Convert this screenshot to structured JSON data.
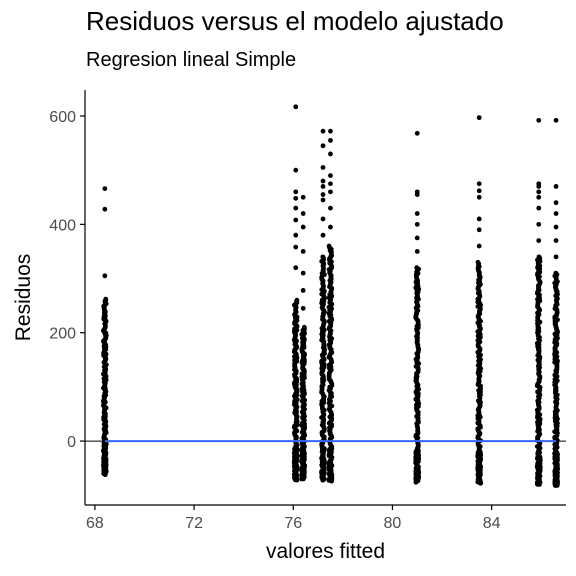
{
  "chart_data": {
    "type": "scatter",
    "title": "Residuos versus el modelo ajustado",
    "subtitle": "Regresion lineal Simple",
    "xlabel": "valores fitted",
    "ylabel": "Residuos",
    "xlim": [
      67.6,
      87.0
    ],
    "ylim": [
      -118,
      648
    ],
    "x_ticks": [
      68,
      72,
      76,
      80,
      84
    ],
    "y_ticks": [
      0,
      200,
      400,
      600
    ],
    "grid": false,
    "legend": "none",
    "point_color": "#000000",
    "reference_line": {
      "y": 0,
      "color": "#000000"
    },
    "fit_line": {
      "y": 0,
      "x_range": [
        68.4,
        86.6
      ],
      "color": "#3366FF"
    },
    "columns": [
      {
        "x": 68.4,
        "min": -62,
        "max": 262,
        "outliers": [
          305,
          428,
          466
        ]
      },
      {
        "x": 76.1,
        "min": -72,
        "max": 260,
        "outliers": [
          320,
          358,
          380,
          408,
          430,
          448,
          460,
          500,
          617
        ]
      },
      {
        "x": 76.4,
        "min": -70,
        "max": 210,
        "outliers": [
          245,
          278,
          310,
          350,
          395,
          420,
          450
        ]
      },
      {
        "x": 77.2,
        "min": -72,
        "max": 340,
        "outliers": [
          380,
          410,
          445,
          455,
          470,
          480,
          505,
          545,
          572
        ]
      },
      {
        "x": 77.5,
        "min": -74,
        "max": 360,
        "outliers": [
          395,
          430,
          460,
          475,
          490,
          530,
          555,
          572
        ]
      },
      {
        "x": 81.0,
        "min": -76,
        "max": 320,
        "outliers": [
          350,
          375,
          400,
          420,
          455,
          460,
          568
        ]
      },
      {
        "x": 83.5,
        "min": -78,
        "max": 330,
        "outliers": [
          360,
          390,
          410,
          450,
          462,
          475,
          597
        ]
      },
      {
        "x": 85.9,
        "min": -80,
        "max": 340,
        "outliers": [
          370,
          400,
          430,
          450,
          460,
          470,
          475,
          592
        ]
      },
      {
        "x": 86.6,
        "min": -82,
        "max": 310,
        "outliers": [
          340,
          370,
          395,
          420,
          440,
          470,
          592
        ]
      }
    ]
  }
}
